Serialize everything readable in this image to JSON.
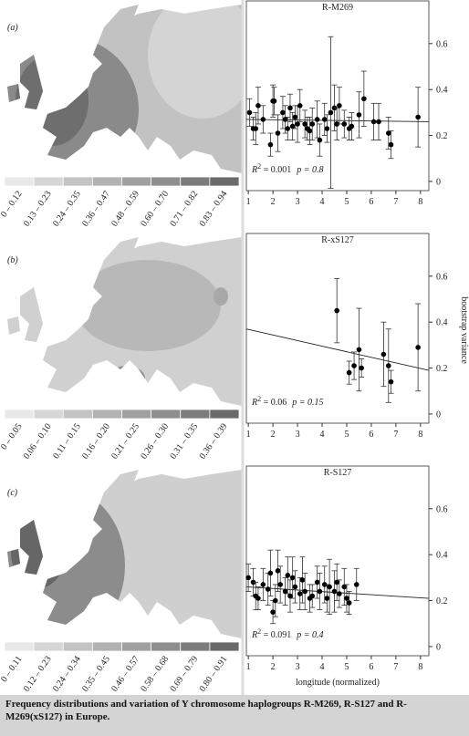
{
  "chart_data": [
    {
      "type": "scatter",
      "panel_label": "(a)",
      "title": "R-M269",
      "annotation": [
        "R",
        "2",
        " = 0.001",
        "p = 0.8"
      ],
      "legend_labels": [
        "0 – 0.12",
        "0.13 – 0.23",
        "0.24 – 0.35",
        "0.36 – 0.47",
        "0.48 – 0.59",
        "0.60 – 0.70",
        "0.71 – 0.82",
        "0.83 – 0.94"
      ],
      "legend_colors": [
        "#e8e8e8",
        "#d6d6d6",
        "#c4c4c4",
        "#b2b2b2",
        "#a0a0a0",
        "#8e8e8e",
        "#7c7c7c",
        "#6a6a6a"
      ],
      "xlim": [
        0.92,
        8.34
      ],
      "xticks": [
        1,
        2,
        3,
        4,
        5,
        6,
        7,
        8
      ],
      "ylim": [
        -0.04,
        0.77
      ],
      "yticks": [
        0,
        0.2,
        0.4,
        0.6
      ],
      "color": "#000000",
      "x": [
        1.05,
        1.2,
        1.3,
        1.4,
        1.6,
        1.9,
        2.0,
        2.05,
        2.2,
        2.4,
        2.5,
        2.6,
        2.7,
        2.8,
        2.9,
        3.0,
        3.1,
        3.3,
        3.4,
        3.5,
        3.6,
        3.8,
        3.9,
        4.1,
        4.2,
        4.35,
        4.5,
        4.6,
        4.7,
        4.9,
        5.1,
        5.2,
        5.5,
        5.7,
        6.1,
        6.3,
        6.7,
        6.8,
        7.9
      ],
      "values": [
        0.3,
        0.23,
        0.23,
        0.33,
        0.27,
        0.16,
        0.35,
        0.35,
        0.21,
        0.3,
        0.27,
        0.23,
        0.32,
        0.24,
        0.28,
        0.25,
        0.33,
        0.25,
        0.23,
        0.22,
        0.25,
        0.27,
        0.18,
        0.27,
        0.23,
        0.3,
        0.32,
        0.25,
        0.33,
        0.25,
        0.23,
        0.24,
        0.29,
        0.36,
        0.26,
        0.26,
        0.21,
        0.16,
        0.28
      ],
      "errors": [
        0.06,
        0.05,
        0.07,
        0.08,
        0.06,
        0.05,
        0.07,
        0.06,
        0.08,
        0.07,
        0.06,
        0.05,
        0.06,
        0.06,
        0.05,
        0.08,
        0.07,
        0.06,
        0.05,
        0.06,
        0.07,
        0.08,
        0.07,
        0.07,
        0.06,
        0.33,
        0.1,
        0.07,
        0.08,
        0.06,
        0.05,
        0.06,
        0.1,
        0.12,
        0.08,
        0.08,
        0.07,
        0.06,
        0.13
      ],
      "fit": {
        "x": [
          0.92,
          8.34
        ],
        "values": [
          0.27,
          0.26
        ]
      }
    },
    {
      "type": "scatter",
      "panel_label": "(b)",
      "title": "R-xS127",
      "annotation": [
        "R",
        "2",
        " = 0.06",
        "p = 0.15"
      ],
      "legend_labels": [
        "0 – 0.05",
        "0.06 – 0.10",
        "0.11 – 0.15",
        "0.16 – 0.20",
        "0.21 – 0.25",
        "0.26 – 0.30",
        "0.31 – 0.35",
        "0.36 – 0.39"
      ],
      "legend_colors": [
        "#e8e8e8",
        "#d6d6d6",
        "#c4c4c4",
        "#b2b2b2",
        "#a0a0a0",
        "#8e8e8e",
        "#7c7c7c",
        "#6a6a6a"
      ],
      "ylabel": "bootstrap variance",
      "xlim": [
        0.92,
        8.34
      ],
      "xticks": [
        1,
        2,
        3,
        4,
        5,
        6,
        7,
        8
      ],
      "ylim": [
        -0.04,
        0.77
      ],
      "yticks": [
        0,
        0.2,
        0.4,
        0.6
      ],
      "color": "#000000",
      "x": [
        4.6,
        5.1,
        5.3,
        5.5,
        5.6,
        6.5,
        6.7,
        6.8,
        7.9
      ],
      "values": [
        0.45,
        0.18,
        0.21,
        0.28,
        0.2,
        0.26,
        0.21,
        0.14,
        0.29
      ],
      "errors": [
        0.14,
        0.05,
        0.06,
        0.18,
        0.04,
        0.14,
        0.16,
        0.05,
        0.19
      ],
      "fit": {
        "x": [
          0.92,
          8.34
        ],
        "values": [
          0.37,
          0.19
        ]
      }
    },
    {
      "type": "scatter",
      "panel_label": "(c)",
      "title": "R-S127",
      "annotation": [
        "R",
        "2",
        " = 0.091",
        "p = 0.4"
      ],
      "legend_labels": [
        "0 – 0.11",
        "0.12 – 0.23",
        "0.24 – 0.34",
        "0.35 – 0.45",
        "0.46 – 0.57",
        "0.58 – 0.68",
        "0.69 – 0.79",
        "0.80 – 0.91"
      ],
      "legend_colors": [
        "#e8e8e8",
        "#d6d6d6",
        "#c4c4c4",
        "#b2b2b2",
        "#a0a0a0",
        "#8e8e8e",
        "#7c7c7c",
        "#6a6a6a"
      ],
      "xlabel": "longitude (normalized)",
      "xlim": [
        0.92,
        8.34
      ],
      "xticks": [
        1,
        2,
        3,
        4,
        5,
        6,
        7,
        8
      ],
      "ylim": [
        -0.04,
        0.77
      ],
      "yticks": [
        0,
        0.2,
        0.4,
        0.6
      ],
      "color": "#000000",
      "x": [
        1.0,
        1.2,
        1.3,
        1.4,
        1.6,
        1.8,
        1.9,
        2.0,
        2.1,
        2.2,
        2.3,
        2.5,
        2.6,
        2.7,
        2.8,
        2.9,
        3.1,
        3.2,
        3.3,
        3.5,
        3.6,
        3.8,
        3.9,
        4.1,
        4.2,
        4.3,
        4.5,
        4.6,
        4.7,
        4.9,
        5.0,
        5.1,
        5.4
      ],
      "values": [
        0.3,
        0.28,
        0.22,
        0.21,
        0.27,
        0.25,
        0.32,
        0.15,
        0.2,
        0.33,
        0.27,
        0.24,
        0.31,
        0.22,
        0.3,
        0.26,
        0.23,
        0.29,
        0.24,
        0.21,
        0.22,
        0.28,
        0.24,
        0.27,
        0.21,
        0.26,
        0.24,
        0.28,
        0.23,
        0.26,
        0.21,
        0.19,
        0.27
      ],
      "errors": [
        0.06,
        0.06,
        0.06,
        0.05,
        0.07,
        0.07,
        0.1,
        0.05,
        0.07,
        0.09,
        0.08,
        0.06,
        0.08,
        0.07,
        0.09,
        0.07,
        0.07,
        0.1,
        0.08,
        0.06,
        0.05,
        0.07,
        0.08,
        0.08,
        0.06,
        0.12,
        0.09,
        0.08,
        0.06,
        0.08,
        0.06,
        0.05,
        0.07
      ],
      "fit": {
        "x": [
          0.92,
          8.34
        ],
        "values": [
          0.26,
          0.21
        ]
      }
    }
  ],
  "caption": "Frequency distributions and variation of Y chromosome haplogroups R-M269, R-S127 and R-M269(xS127) in Europe."
}
